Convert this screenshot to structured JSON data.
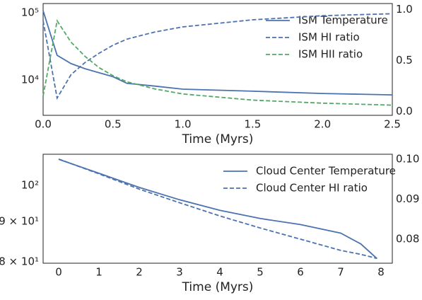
{
  "chart_data": [
    {
      "type": "line",
      "xlabel": "Time (Myrs)",
      "x": [
        0,
        0.1,
        0.2,
        0.3,
        0.4,
        0.5,
        0.6,
        0.8,
        1.0,
        1.5,
        2.0,
        2.5
      ],
      "series": [
        {
          "name": "ISM Temperature",
          "color": "#4c72b0",
          "linestyle": "solid",
          "axis": "y",
          "values": [
            107000,
            23300,
            17500,
            14700,
            12800,
            11200,
            8900,
            8100,
            7300,
            6800,
            6300,
            6000
          ]
        },
        {
          "name": "ISM HI ratio",
          "color": "#4c72b0",
          "linestyle": "dashed",
          "axis": "y2",
          "values": [
            0.89,
            0.13,
            0.36,
            0.48,
            0.57,
            0.65,
            0.71,
            0.78,
            0.83,
            0.9,
            0.94,
            0.96
          ]
        },
        {
          "name": "ISM HII ratio",
          "color": "#55a868",
          "linestyle": "dashed",
          "axis": "y2",
          "values": [
            0.15,
            0.89,
            0.68,
            0.54,
            0.43,
            0.35,
            0.29,
            0.22,
            0.17,
            0.11,
            0.08,
            0.06
          ]
        }
      ],
      "xlim": [
        0,
        2.5
      ],
      "xticks": [
        {
          "value": 0,
          "label": "0.0"
        },
        0.5,
        {
          "value": 1,
          "label": "1.0"
        },
        1.5,
        {
          "value": 2,
          "label": "2.0"
        },
        2.5
      ],
      "ylim": [
        2980,
        137000
      ],
      "ylog": true,
      "yticks": [
        {
          "value": 10000,
          "label": "10⁴"
        },
        {
          "value": 100000,
          "label": "10⁵"
        }
      ],
      "y2lim": [
        -0.04,
        1.06
      ],
      "y2ticks": [
        {
          "value": 0,
          "label": "0.0"
        },
        0.5,
        {
          "value": 1,
          "label": "1.0"
        }
      ],
      "grid": false,
      "legend": "upper right"
    },
    {
      "type": "line",
      "xlabel": "Time (Myrs)",
      "x": [
        0,
        1,
        2,
        3,
        4,
        5,
        6,
        7,
        7.5,
        7.9
      ],
      "series": [
        {
          "name": "Cloud Center Temperature",
          "color": "#4c72b0",
          "linestyle": "solid",
          "axis": "y",
          "values": [
            107.9,
            103.6,
            99.4,
            95.9,
            93.0,
            90.8,
            89.2,
            87.0,
            84.3,
            80.8
          ]
        },
        {
          "name": "Cloud Center HI ratio",
          "color": "#4c72b0",
          "linestyle": "dashed",
          "axis": "y2",
          "values": [
            0.1,
            0.0963,
            0.0925,
            0.0891,
            0.0858,
            0.0828,
            0.08,
            0.0772,
            0.0762,
            0.0752
          ]
        }
      ],
      "xlim": [
        -0.386,
        8.28
      ],
      "xticks": [
        0,
        1,
        2,
        3,
        4,
        5,
        6,
        7,
        8
      ],
      "ylim": [
        79.7,
        109.5
      ],
      "ylog": true,
      "yticks": [
        {
          "value": 80,
          "label": "8 × 10¹"
        },
        {
          "value": 90,
          "label": "9 × 10¹"
        },
        {
          "value": 100,
          "label": "10²"
        }
      ],
      "y2lim": [
        0.074,
        0.1012
      ],
      "y2ticks": [
        0.08,
        0.09,
        {
          "value": 0.1,
          "label": "0.10"
        }
      ],
      "grid": false,
      "legend": "upper right"
    }
  ]
}
